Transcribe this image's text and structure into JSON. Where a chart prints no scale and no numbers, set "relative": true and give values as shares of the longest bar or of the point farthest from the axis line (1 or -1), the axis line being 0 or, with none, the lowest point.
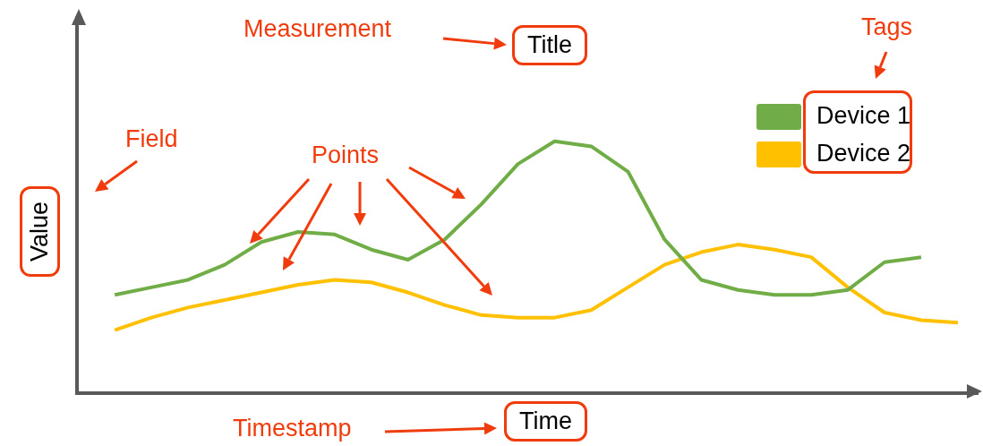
{
  "chart_data": {
    "type": "line",
    "title": "Title",
    "xlabel": "Time",
    "ylabel": "Value",
    "relative": true,
    "grid": false,
    "legend": "top right",
    "marker": "none",
    "annotations": [
      "Measurement",
      "Tags",
      "Field",
      "Points",
      "Timestamp"
    ],
    "categories": [
      null,
      null,
      null,
      null,
      null,
      null,
      null,
      null,
      null,
      null,
      null,
      null,
      null,
      null,
      null,
      null,
      null,
      null,
      null,
      null,
      null,
      null,
      null,
      null
    ],
    "series": [
      {
        "name": "Device 1",
        "color": "#70ad47",
        "values": [
          0.39,
          0.42,
          0.45,
          0.51,
          0.6,
          0.64,
          0.63,
          0.57,
          0.53,
          0.61,
          0.75,
          0.91,
          1,
          0.98,
          0.88,
          0.61,
          0.45,
          0.41,
          0.39,
          0.39,
          0.41,
          0.52,
          0.54,
          null
        ]
      },
      {
        "name": "Device 2",
        "color": "#ffc000",
        "values": [
          0.25,
          0.3,
          0.34,
          0.37,
          0.4,
          0.43,
          0.45,
          0.44,
          0.4,
          0.35,
          0.31,
          0.3,
          0.3,
          0.33,
          0.42,
          0.51,
          0.56,
          0.59,
          0.57,
          0.54,
          0.42,
          0.32,
          0.29,
          0.28
        ]
      }
    ]
  }
}
